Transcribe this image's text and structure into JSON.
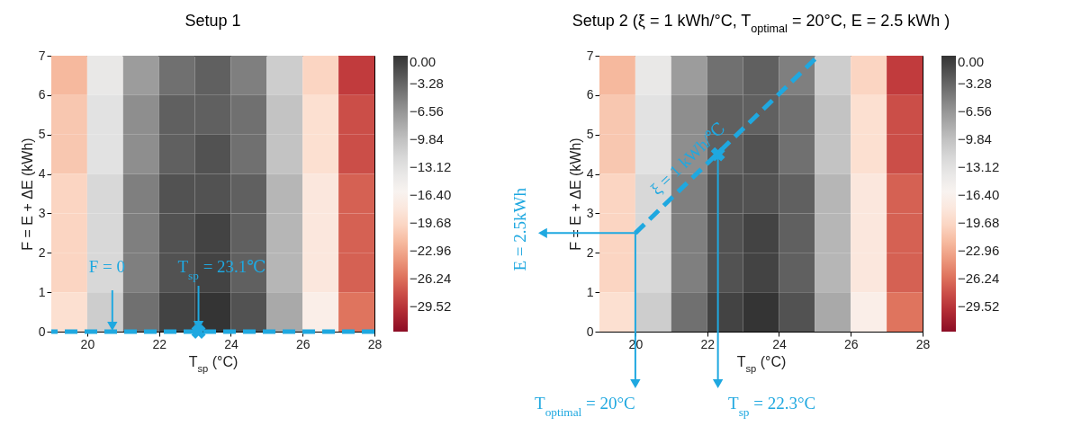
{
  "chart_data": [
    {
      "type": "heatmap",
      "title": "Setup 1",
      "xlabel": "T$_{sp}$ (°C)",
      "ylabel": "F = E + ΔE (kWh)",
      "x": [
        19.5,
        20.5,
        21.5,
        22.5,
        23.5,
        24.5,
        25.5,
        26.5,
        27.5
      ],
      "cells": [
        [
          -22,
          -14,
          -7,
          -4,
          -3,
          -5,
          -11,
          -20,
          -29
        ],
        [
          -21,
          -13,
          -6,
          -3,
          -3,
          -4,
          -10,
          -19,
          -28
        ],
        [
          -21,
          -13,
          -6,
          -3,
          -2,
          -4,
          -10,
          -19,
          -28
        ],
        [
          -20,
          -12,
          -5,
          -2,
          -2,
          -3,
          -9,
          -18,
          -27
        ],
        [
          -20,
          -12,
          -5,
          -2,
          -1,
          -3,
          -9,
          -18,
          -27
        ],
        [
          -20,
          -12,
          -5,
          -2,
          -1,
          -3,
          -9,
          -18,
          -27
        ],
        [
          -19,
          -11,
          -4,
          -1,
          0,
          -2,
          -8,
          -17,
          -26
        ]
      ],
      "xlim": [
        19,
        28
      ],
      "ylim": [
        0,
        7
      ],
      "xticks": [
        20,
        22,
        24,
        26,
        28
      ],
      "yticks": [
        0,
        1,
        2,
        3,
        4,
        5,
        6,
        7
      ],
      "clim": [
        -32.5,
        0
      ],
      "cticks": [
        {
          "value": 0,
          "label": "0.00"
        },
        {
          "value": -3.28,
          "label": "−3.28"
        },
        {
          "value": -6.56,
          "label": "−6.56"
        },
        {
          "value": -9.84,
          "label": "−9.84"
        },
        {
          "value": -13.12,
          "label": "−13.12"
        },
        {
          "value": -16.4,
          "label": "−16.40"
        },
        {
          "value": -19.68,
          "label": "−19.68"
        },
        {
          "value": -22.96,
          "label": "−22.96"
        },
        {
          "value": -26.24,
          "label": "−26.24"
        },
        {
          "value": -29.52,
          "label": "−29.52"
        }
      ],
      "ref_lines": [
        {
          "axis": "y",
          "value": 0,
          "color": "#1fa8e0",
          "line_style": "dashed"
        }
      ],
      "series": [
        {
          "type": "scatter",
          "x": [
            23.1
          ],
          "values": [
            0
          ],
          "color": "#1fa8e0",
          "marker": "cross"
        }
      ],
      "annotations": [
        {
          "text": "F = 0",
          "x": 20.7,
          "y": 0
        },
        {
          "text": "T$_{sp}$ = 23.1℃",
          "x": 23.1,
          "y": 0
        }
      ]
    },
    {
      "type": "heatmap",
      "title": "Setup 2  (ξ = 1 kWh/°C, T$_{optimal}$ = 20°C, E = 2.5 kWh )",
      "xlabel": "T$_{sp}$ (°C)",
      "ylabel": "F = E + ΔE (kWh)",
      "x": [
        19.5,
        20.5,
        21.5,
        22.5,
        23.5,
        24.5,
        25.5,
        26.5,
        27.5
      ],
      "cells": [
        [
          -22,
          -14,
          -7,
          -4,
          -3,
          -5,
          -11,
          -20,
          -29
        ],
        [
          -21,
          -13,
          -6,
          -3,
          -3,
          -4,
          -10,
          -19,
          -28
        ],
        [
          -21,
          -13,
          -6,
          -3,
          -2,
          -4,
          -10,
          -19,
          -28
        ],
        [
          -20,
          -12,
          -5,
          -2,
          -2,
          -3,
          -9,
          -18,
          -27
        ],
        [
          -20,
          -12,
          -5,
          -2,
          -1,
          -3,
          -9,
          -18,
          -27
        ],
        [
          -20,
          -12,
          -5,
          -2,
          -1,
          -3,
          -9,
          -18,
          -27
        ],
        [
          -19,
          -11,
          -4,
          -1,
          0,
          -2,
          -8,
          -17,
          -26
        ]
      ],
      "xlim": [
        19,
        28
      ],
      "ylim": [
        0,
        7
      ],
      "xticks": [
        20,
        22,
        24,
        26,
        28
      ],
      "yticks": [
        0,
        1,
        2,
        3,
        4,
        5,
        6,
        7
      ],
      "clim": [
        -32.5,
        0
      ],
      "cticks": [
        {
          "value": 0,
          "label": "0.00"
        },
        {
          "value": -3.28,
          "label": "−3.28"
        },
        {
          "value": -6.56,
          "label": "−6.56"
        },
        {
          "value": -9.84,
          "label": "−9.84"
        },
        {
          "value": -13.12,
          "label": "−13.12"
        },
        {
          "value": -16.4,
          "label": "−16.40"
        },
        {
          "value": -19.68,
          "label": "−19.68"
        },
        {
          "value": -22.96,
          "label": "−22.96"
        },
        {
          "value": -26.24,
          "label": "−26.24"
        },
        {
          "value": -29.52,
          "label": "−29.52"
        }
      ],
      "series": [
        {
          "type": "line",
          "x": [
            20,
            25.1
          ],
          "values": [
            2.5,
            7
          ],
          "color": "#1fa8e0",
          "line_style": "dashed"
        },
        {
          "type": "scatter",
          "x": [
            22.3
          ],
          "values": [
            4.5
          ],
          "color": "#1fa8e0",
          "marker": "cross"
        }
      ],
      "annotations": [
        {
          "text": "E = 2.5kWh",
          "x": 20,
          "y": 2.5
        },
        {
          "text": "T$_{optimal}$ = 20°C",
          "x": 20,
          "y": 2.5
        },
        {
          "text": "T$_{sp}$ = 22.3°C",
          "x": 22.3,
          "y": 4.5
        },
        {
          "text": "ξ = 1 kWh/℃",
          "x": 21.8,
          "y": 4.09
        }
      ]
    }
  ]
}
